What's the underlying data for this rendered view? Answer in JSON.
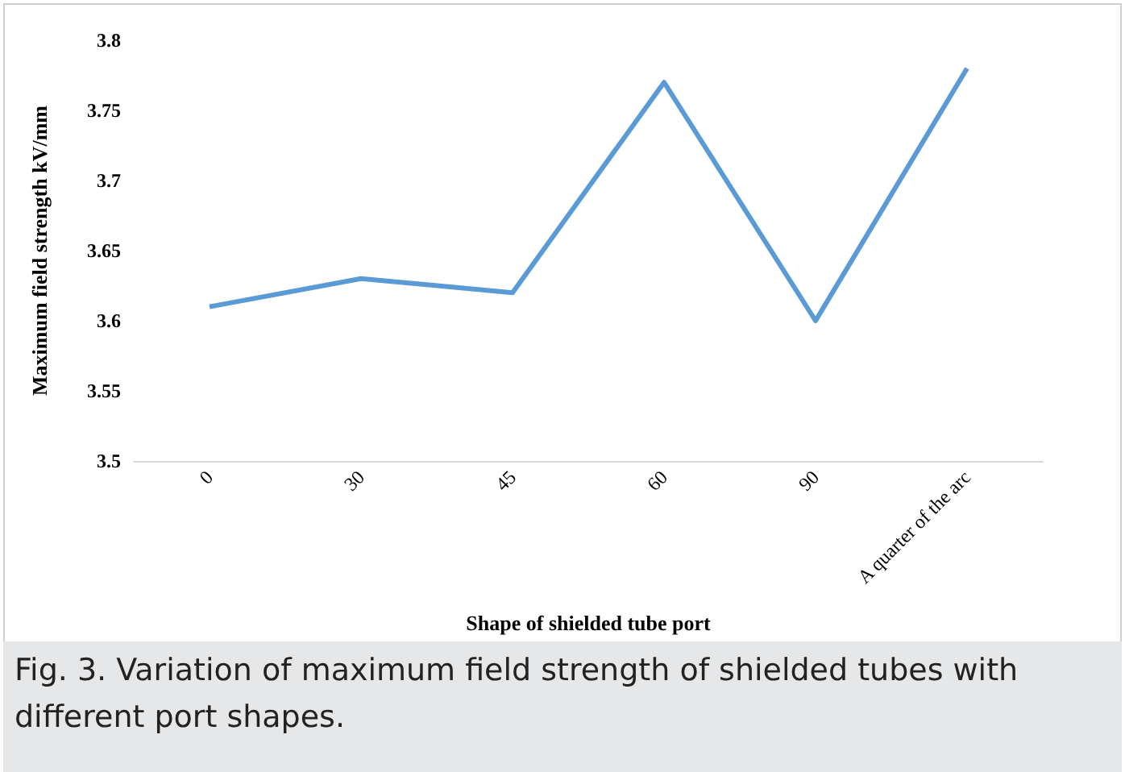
{
  "chart_data": {
    "type": "line",
    "xlabel": "Shape of shielded tube port",
    "ylabel": "Maximum field strength kV/mm",
    "categories": [
      "0",
      "30",
      "45",
      "60",
      "90",
      "A quarter of the arc"
    ],
    "series": [
      {
        "color": "#5b9bd5",
        "values": [
          3.61,
          3.63,
          3.62,
          3.77,
          3.6,
          3.78
        ]
      }
    ],
    "ylim": [
      3.5,
      3.8
    ],
    "yticks": [
      3.5,
      3.55,
      3.6,
      3.65,
      3.7,
      3.75,
      3.8
    ],
    "grid": false,
    "marker": "none",
    "line_style": "solid",
    "annotations": [
      "Fig. 3.  Variation of maximum field strength of shielded tubes with different port shapes."
    ]
  }
}
